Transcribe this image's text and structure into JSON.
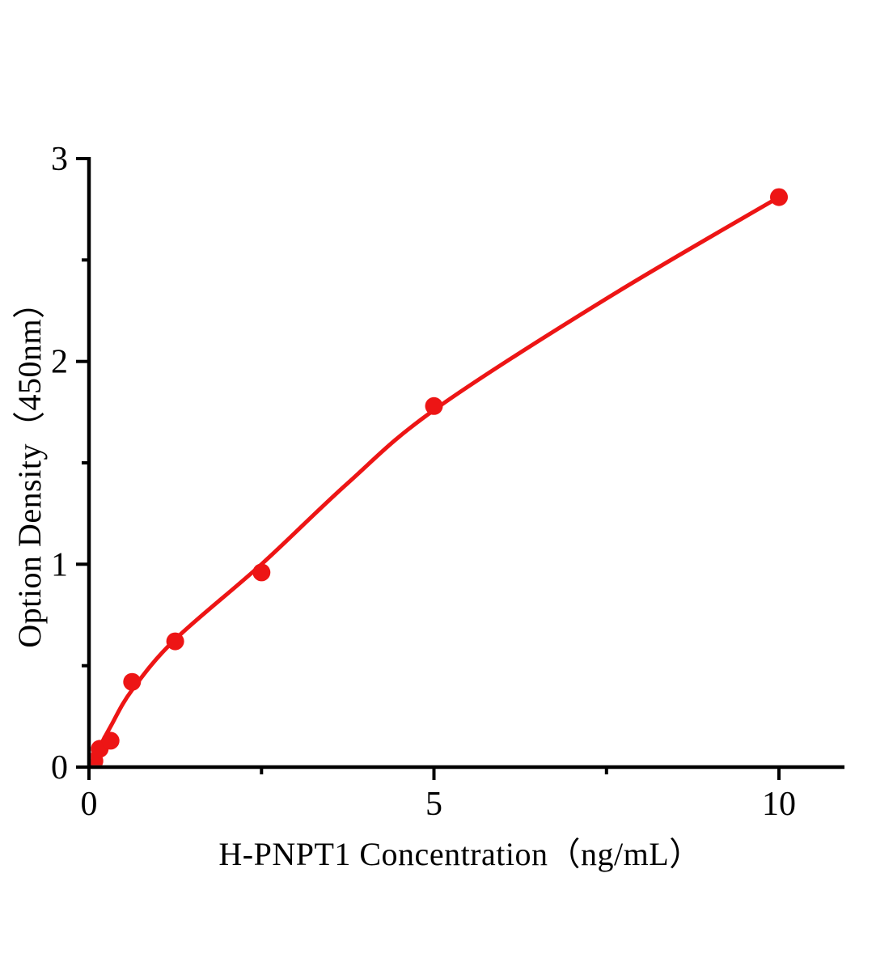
{
  "chart_data": {
    "type": "scatter",
    "title": "",
    "xlabel": "H-PNPT1 Concentration（ng/mL）",
    "ylabel": "Option Density（450nm）",
    "x": [
      0.078,
      0.156,
      0.3125,
      0.625,
      1.25,
      2.5,
      5,
      10
    ],
    "y": [
      0.03,
      0.09,
      0.13,
      0.42,
      0.62,
      0.96,
      1.78,
      2.81
    ],
    "fit_curve_points": [
      [
        0,
        0
      ],
      [
        0.3125,
        0.2
      ],
      [
        0.625,
        0.38
      ],
      [
        1.25,
        0.63
      ],
      [
        2.5,
        1.0
      ],
      [
        3.75,
        1.4
      ],
      [
        5,
        1.76
      ],
      [
        7.5,
        2.31
      ],
      [
        10,
        2.81
      ]
    ],
    "xlim": [
      0,
      10.95
    ],
    "ylim": [
      0,
      3
    ],
    "x_ticks": {
      "major": [
        {
          "value": 0,
          "label": "0"
        },
        {
          "value": 5,
          "label": "5"
        },
        {
          "value": 10,
          "label": "10"
        }
      ],
      "minor": [
        2.5,
        7.5
      ]
    },
    "y_ticks": {
      "major": [
        {
          "value": 0,
          "label": "0"
        },
        {
          "value": 1,
          "label": "1"
        },
        {
          "value": 2,
          "label": "2"
        },
        {
          "value": 3,
          "label": "3"
        }
      ],
      "minor": [
        0.5,
        1.5,
        2.5
      ]
    },
    "grid": false,
    "legend": false,
    "colors": {
      "data": "#ed1515",
      "axis": "#000000",
      "background": "#ffffff"
    }
  }
}
